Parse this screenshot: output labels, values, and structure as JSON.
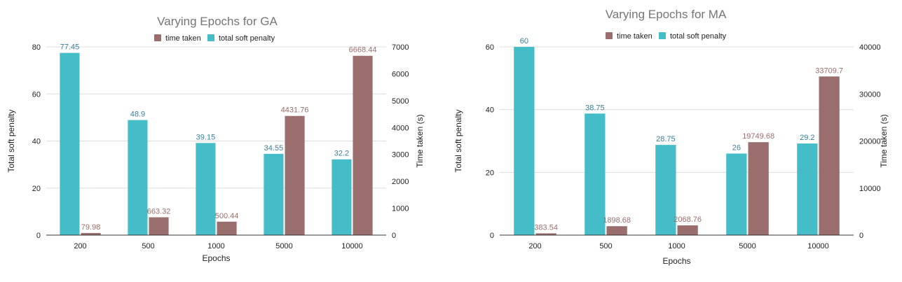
{
  "colors": {
    "soft": "#45bdc8",
    "time": "#996e6c",
    "soft_label": "#3a7f9a",
    "time_label": "#996e6c"
  },
  "chart_data": [
    {
      "type": "bar",
      "title": "Varying Epochs for GA",
      "xlabel": "Epochs",
      "ylabel_left": "Total soft penalty",
      "ylabel_right": "Time taken (s)",
      "categories": [
        "200",
        "500",
        "1000",
        "5000",
        "10000"
      ],
      "ylim_left": [
        0,
        80
      ],
      "ylim_right": [
        0,
        7000
      ],
      "yticks_left": [
        "0",
        "20",
        "40",
        "60",
        "80"
      ],
      "yticks_right": [
        "0",
        "1000",
        "2000",
        "3000",
        "4000",
        "5000",
        "6000",
        "7000"
      ],
      "legend_position": "top-center",
      "series": [
        {
          "name": "total soft penalty",
          "axis": "left",
          "values": [
            77.45,
            48.9,
            39.15,
            34.55,
            32.2
          ],
          "labels": [
            "77.45",
            "48.9",
            "39.15",
            "34.55",
            "32.2"
          ]
        },
        {
          "name": "time taken",
          "axis": "right",
          "values": [
            79.98,
            663.32,
            500.44,
            4431.76,
            6668.44
          ],
          "labels": [
            "79.98",
            "663.32",
            "500.44",
            "4431.76",
            "6668.44"
          ]
        }
      ]
    },
    {
      "type": "bar",
      "title": "Varying Epochs for MA",
      "xlabel": "Epochs",
      "ylabel_left": "Total soft penalty",
      "ylabel_right": "Time taken (s)",
      "categories": [
        "200",
        "500",
        "1000",
        "5000",
        "10000"
      ],
      "ylim_left": [
        0,
        60
      ],
      "ylim_right": [
        0,
        40000
      ],
      "yticks_left": [
        "0",
        "20",
        "40",
        "60"
      ],
      "yticks_right": [
        "0",
        "10000",
        "20000",
        "30000",
        "40000"
      ],
      "legend_position": "top-center",
      "series": [
        {
          "name": "total soft penalty",
          "axis": "left",
          "values": [
            60,
            38.75,
            28.75,
            26,
            29.2
          ],
          "labels": [
            "60",
            "38.75",
            "28.75",
            "26",
            "29.2"
          ]
        },
        {
          "name": "time taken",
          "axis": "right",
          "values": [
            383.54,
            1898.68,
            2068.76,
            19749.68,
            33709.7
          ],
          "labels": [
            "383.54",
            "1898.68",
            "2068.76",
            "19749.68",
            "33709.7"
          ]
        }
      ]
    }
  ]
}
